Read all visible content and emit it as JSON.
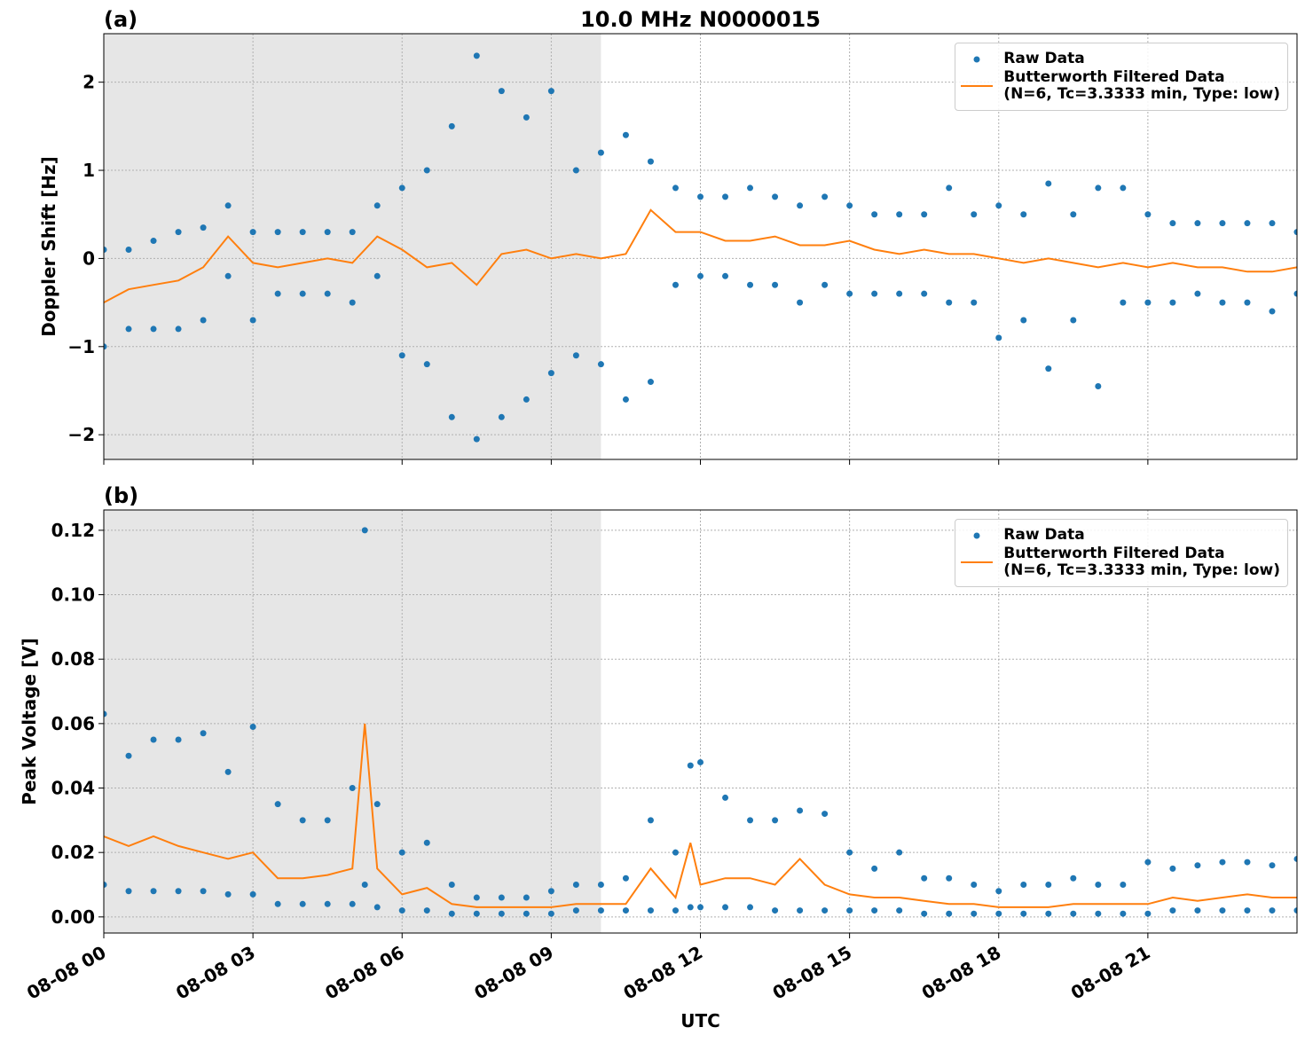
{
  "chart_data": [
    {
      "type": "line",
      "panel_label": "(a)",
      "title": "10.0 MHz N0000015",
      "y_label": "Doppler Shift [Hz]",
      "xlim": [
        0,
        24
      ],
      "ylim": [
        -2.28,
        2.55
      ],
      "xticks": [
        0,
        3,
        6,
        9,
        12,
        15,
        18,
        21
      ],
      "yticks": [
        {
          "value": -2,
          "label": "−2"
        },
        {
          "value": -1,
          "label": "−1"
        },
        0,
        1,
        2
      ],
      "grid": true,
      "legend": "upper right",
      "shaded_span": [
        0,
        10
      ],
      "shade_color": "#e6e6e6",
      "series": [
        {
          "name": "Raw Data",
          "style": "points",
          "color": "#1f77b4",
          "x": [
            0,
            0.5,
            1,
            1.5,
            2,
            2.5,
            3,
            3.5,
            4,
            4.5,
            5,
            5.5,
            6,
            6.5,
            7,
            7.5,
            8,
            8.5,
            9,
            9.5,
            10,
            10.5,
            11,
            11.5,
            12,
            12.5,
            13,
            13.5,
            14,
            14.5,
            15,
            15.5,
            16,
            16.5,
            17,
            17.5,
            18,
            18.5,
            19,
            19.5,
            20,
            20.5,
            21,
            21.5,
            22,
            22.5,
            23,
            23.5,
            24
          ],
          "values": [
            [
              0.1,
              -1.0
            ],
            [
              0.1,
              -0.8
            ],
            [
              0.2,
              -0.8
            ],
            [
              0.3,
              -0.8
            ],
            [
              0.35,
              -0.7
            ],
            [
              0.6,
              -0.2
            ],
            [
              0.3,
              -0.7
            ],
            [
              0.3,
              -0.4
            ],
            [
              0.3,
              -0.4
            ],
            [
              0.3,
              -0.4
            ],
            [
              0.3,
              -0.5
            ],
            [
              0.6,
              -0.2
            ],
            [
              0.8,
              -1.1
            ],
            [
              1.0,
              -1.2
            ],
            [
              1.5,
              -1.8
            ],
            [
              2.3,
              -2.05
            ],
            [
              1.9,
              -1.8
            ],
            [
              1.6,
              -1.6
            ],
            [
              1.9,
              -1.3
            ],
            [
              1.0,
              -1.1
            ],
            [
              1.2,
              -1.2
            ],
            [
              1.4,
              -1.6
            ],
            [
              1.1,
              -1.4
            ],
            [
              0.8,
              -0.3
            ],
            [
              0.7,
              -0.2
            ],
            [
              0.7,
              -0.2
            ],
            [
              0.8,
              -0.3
            ],
            [
              0.7,
              -0.3
            ],
            [
              0.6,
              -0.5
            ],
            [
              0.7,
              -0.3
            ],
            [
              0.6,
              -0.4
            ],
            [
              0.5,
              -0.4
            ],
            [
              0.5,
              -0.4
            ],
            [
              0.5,
              -0.4
            ],
            [
              0.8,
              -0.5
            ],
            [
              0.5,
              -0.5
            ],
            [
              0.6,
              -0.9
            ],
            [
              0.5,
              -0.7
            ],
            [
              0.85,
              -1.25
            ],
            [
              0.5,
              -0.7
            ],
            [
              0.8,
              -1.45
            ],
            [
              0.8,
              -0.5
            ],
            [
              0.5,
              -0.5
            ],
            [
              0.4,
              -0.5
            ],
            [
              0.4,
              -0.4
            ],
            [
              0.4,
              -0.5
            ],
            [
              0.4,
              -0.5
            ],
            [
              0.4,
              -0.6
            ],
            [
              0.3,
              -0.4
            ]
          ]
        },
        {
          "name": "Butterworth Filtered Data\n(N=6, Tc=3.3333 min, Type: low)",
          "style": "line",
          "color": "#ff7f0e",
          "x": [
            0,
            0.5,
            1,
            1.5,
            2,
            2.5,
            3,
            3.5,
            4,
            4.5,
            5,
            5.5,
            6,
            6.5,
            7,
            7.5,
            8,
            8.5,
            9,
            9.5,
            10,
            10.5,
            11,
            11.5,
            12,
            12.5,
            13,
            13.5,
            14,
            14.5,
            15,
            15.5,
            16,
            16.5,
            17,
            17.5,
            18,
            18.5,
            19,
            19.5,
            20,
            20.5,
            21,
            21.5,
            22,
            22.5,
            23,
            23.5,
            24
          ],
          "values": [
            -0.5,
            -0.35,
            -0.3,
            -0.25,
            -0.1,
            0.25,
            -0.05,
            -0.1,
            -0.05,
            0,
            -0.05,
            0.25,
            0.1,
            -0.1,
            -0.05,
            -0.3,
            0.05,
            0.1,
            0,
            0.05,
            0,
            0.05,
            0.55,
            0.3,
            0.3,
            0.2,
            0.2,
            0.25,
            0.15,
            0.15,
            0.2,
            0.1,
            0.05,
            0.1,
            0.05,
            0.05,
            0,
            -0.05,
            0,
            -0.05,
            -0.1,
            -0.05,
            -0.1,
            -0.05,
            -0.1,
            -0.1,
            -0.15,
            -0.15,
            -0.1
          ]
        }
      ]
    },
    {
      "type": "line",
      "panel_label": "(b)",
      "y_label": "Peak Voltage [V]",
      "x_label": "UTC",
      "xlim": [
        0,
        24
      ],
      "ylim": [
        -0.005,
        0.1263
      ],
      "xticks": [
        {
          "value": 0,
          "label": "08-08 00"
        },
        {
          "value": 3,
          "label": "08-08 03"
        },
        {
          "value": 6,
          "label": "08-08 06"
        },
        {
          "value": 9,
          "label": "08-08 09"
        },
        {
          "value": 12,
          "label": "08-08 12"
        },
        {
          "value": 15,
          "label": "08-08 15"
        },
        {
          "value": 18,
          "label": "08-08 18"
        },
        {
          "value": 21,
          "label": "08-08 21"
        }
      ],
      "yticks": [
        {
          "value": 0,
          "label": "0.00"
        },
        {
          "value": 0.02,
          "label": "0.02"
        },
        {
          "value": 0.04,
          "label": "0.04"
        },
        {
          "value": 0.06,
          "label": "0.06"
        },
        {
          "value": 0.08,
          "label": "0.08"
        },
        {
          "value": 0.1,
          "label": "0.10"
        },
        {
          "value": 0.12,
          "label": "0.12"
        }
      ],
      "grid": true,
      "legend": "upper right",
      "shaded_span": [
        0,
        10
      ],
      "shade_color": "#e6e6e6",
      "series": [
        {
          "name": "Raw Data",
          "style": "points",
          "color": "#1f77b4",
          "x": [
            0,
            0.5,
            1,
            1.5,
            2,
            2.5,
            3,
            3.5,
            4,
            4.5,
            5,
            5.25,
            5.5,
            6,
            6.5,
            7,
            7.5,
            8,
            8.5,
            9,
            9.5,
            10,
            10.5,
            11,
            11.5,
            11.8,
            12,
            12.5,
            13,
            13.5,
            14,
            14.5,
            15,
            15.5,
            16,
            16.5,
            17,
            17.5,
            18,
            18.5,
            19,
            19.5,
            20,
            20.5,
            21,
            21.5,
            22,
            22.5,
            23,
            23.5,
            24
          ],
          "values": [
            [
              0.063,
              0.01
            ],
            [
              0.05,
              0.008
            ],
            [
              0.055,
              0.008
            ],
            [
              0.055,
              0.008
            ],
            [
              0.057,
              0.008
            ],
            [
              0.045,
              0.007
            ],
            [
              0.059,
              0.007
            ],
            [
              0.035,
              0.004
            ],
            [
              0.03,
              0.004
            ],
            [
              0.03,
              0.004
            ],
            [
              0.04,
              0.004
            ],
            [
              0.12,
              0.01
            ],
            [
              0.035,
              0.003
            ],
            [
              0.02,
              0.002
            ],
            [
              0.023,
              0.002
            ],
            [
              0.01,
              0.001
            ],
            [
              0.006,
              0.001
            ],
            [
              0.006,
              0.001
            ],
            [
              0.006,
              0.001
            ],
            [
              0.008,
              0.001
            ],
            [
              0.01,
              0.002
            ],
            [
              0.01,
              0.002
            ],
            [
              0.012,
              0.002
            ],
            [
              0.03,
              0.002
            ],
            [
              0.02,
              0.002
            ],
            [
              0.047,
              0.003
            ],
            [
              0.048,
              0.003
            ],
            [
              0.037,
              0.003
            ],
            [
              0.03,
              0.003
            ],
            [
              0.03,
              0.002
            ],
            [
              0.033,
              0.002
            ],
            [
              0.032,
              0.002
            ],
            [
              0.02,
              0.002
            ],
            [
              0.015,
              0.002
            ],
            [
              0.02,
              0.002
            ],
            [
              0.012,
              0.001
            ],
            [
              0.012,
              0.001
            ],
            [
              0.01,
              0.001
            ],
            [
              0.008,
              0.001
            ],
            [
              0.01,
              0.001
            ],
            [
              0.01,
              0.001
            ],
            [
              0.012,
              0.001
            ],
            [
              0.01,
              0.001
            ],
            [
              0.01,
              0.001
            ],
            [
              0.017,
              0.001
            ],
            [
              0.015,
              0.002
            ],
            [
              0.016,
              0.002
            ],
            [
              0.017,
              0.002
            ],
            [
              0.017,
              0.002
            ],
            [
              0.016,
              0.002
            ],
            [
              0.018,
              0.002
            ]
          ]
        },
        {
          "name": "Butterworth Filtered Data\n(N=6, Tc=3.3333 min, Type: low)",
          "style": "line",
          "color": "#ff7f0e",
          "x": [
            0,
            0.5,
            1,
            1.5,
            2,
            2.5,
            3,
            3.5,
            4,
            4.5,
            5,
            5.25,
            5.5,
            6,
            6.5,
            7,
            7.5,
            8,
            8.5,
            9,
            9.5,
            10,
            10.5,
            11,
            11.5,
            11.8,
            12,
            12.5,
            13,
            13.5,
            14,
            14.5,
            15,
            15.5,
            16,
            16.5,
            17,
            17.5,
            18,
            18.5,
            19,
            19.5,
            20,
            20.5,
            21,
            21.5,
            22,
            22.5,
            23,
            23.5,
            24
          ],
          "values": [
            0.025,
            0.022,
            0.025,
            0.022,
            0.02,
            0.018,
            0.02,
            0.012,
            0.012,
            0.013,
            0.015,
            0.06,
            0.015,
            0.007,
            0.009,
            0.004,
            0.003,
            0.003,
            0.003,
            0.003,
            0.004,
            0.004,
            0.004,
            0.015,
            0.006,
            0.023,
            0.01,
            0.012,
            0.012,
            0.01,
            0.018,
            0.01,
            0.007,
            0.006,
            0.006,
            0.005,
            0.004,
            0.004,
            0.003,
            0.003,
            0.003,
            0.004,
            0.004,
            0.004,
            0.004,
            0.006,
            0.005,
            0.006,
            0.007,
            0.006,
            0.006
          ]
        }
      ]
    }
  ]
}
